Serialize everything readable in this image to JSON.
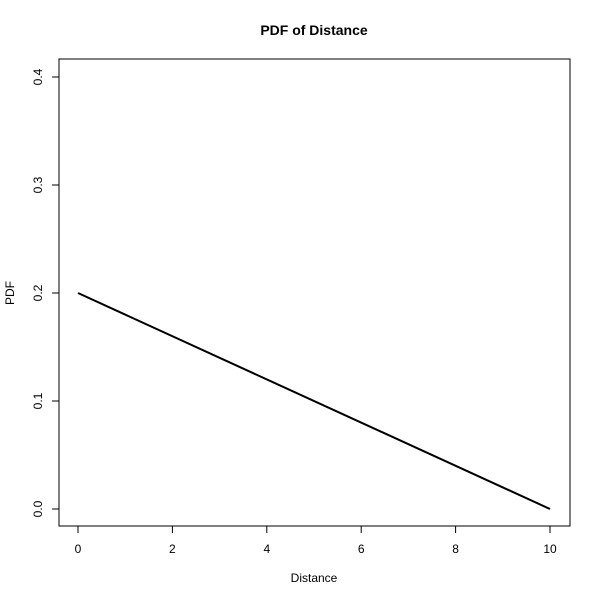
{
  "chart_data": {
    "type": "line",
    "title": "PDF of Distance",
    "xlabel": "Distance",
    "ylabel": "PDF",
    "xlim": [
      0,
      10
    ],
    "ylim": [
      0,
      0.4
    ],
    "xticks": [
      0,
      2,
      4,
      6,
      8,
      10
    ],
    "yticks": [
      0.0,
      0.1,
      0.2,
      0.3,
      0.4
    ],
    "xtick_labels": [
      "0",
      "2",
      "4",
      "6",
      "8",
      "10"
    ],
    "ytick_labels": [
      "0.0",
      "0.1",
      "0.2",
      "0.3",
      "0.4"
    ],
    "grid": false,
    "series": [
      {
        "x": [
          0,
          10
        ],
        "y": [
          0.2,
          0.0
        ],
        "color": "#000000"
      }
    ]
  }
}
